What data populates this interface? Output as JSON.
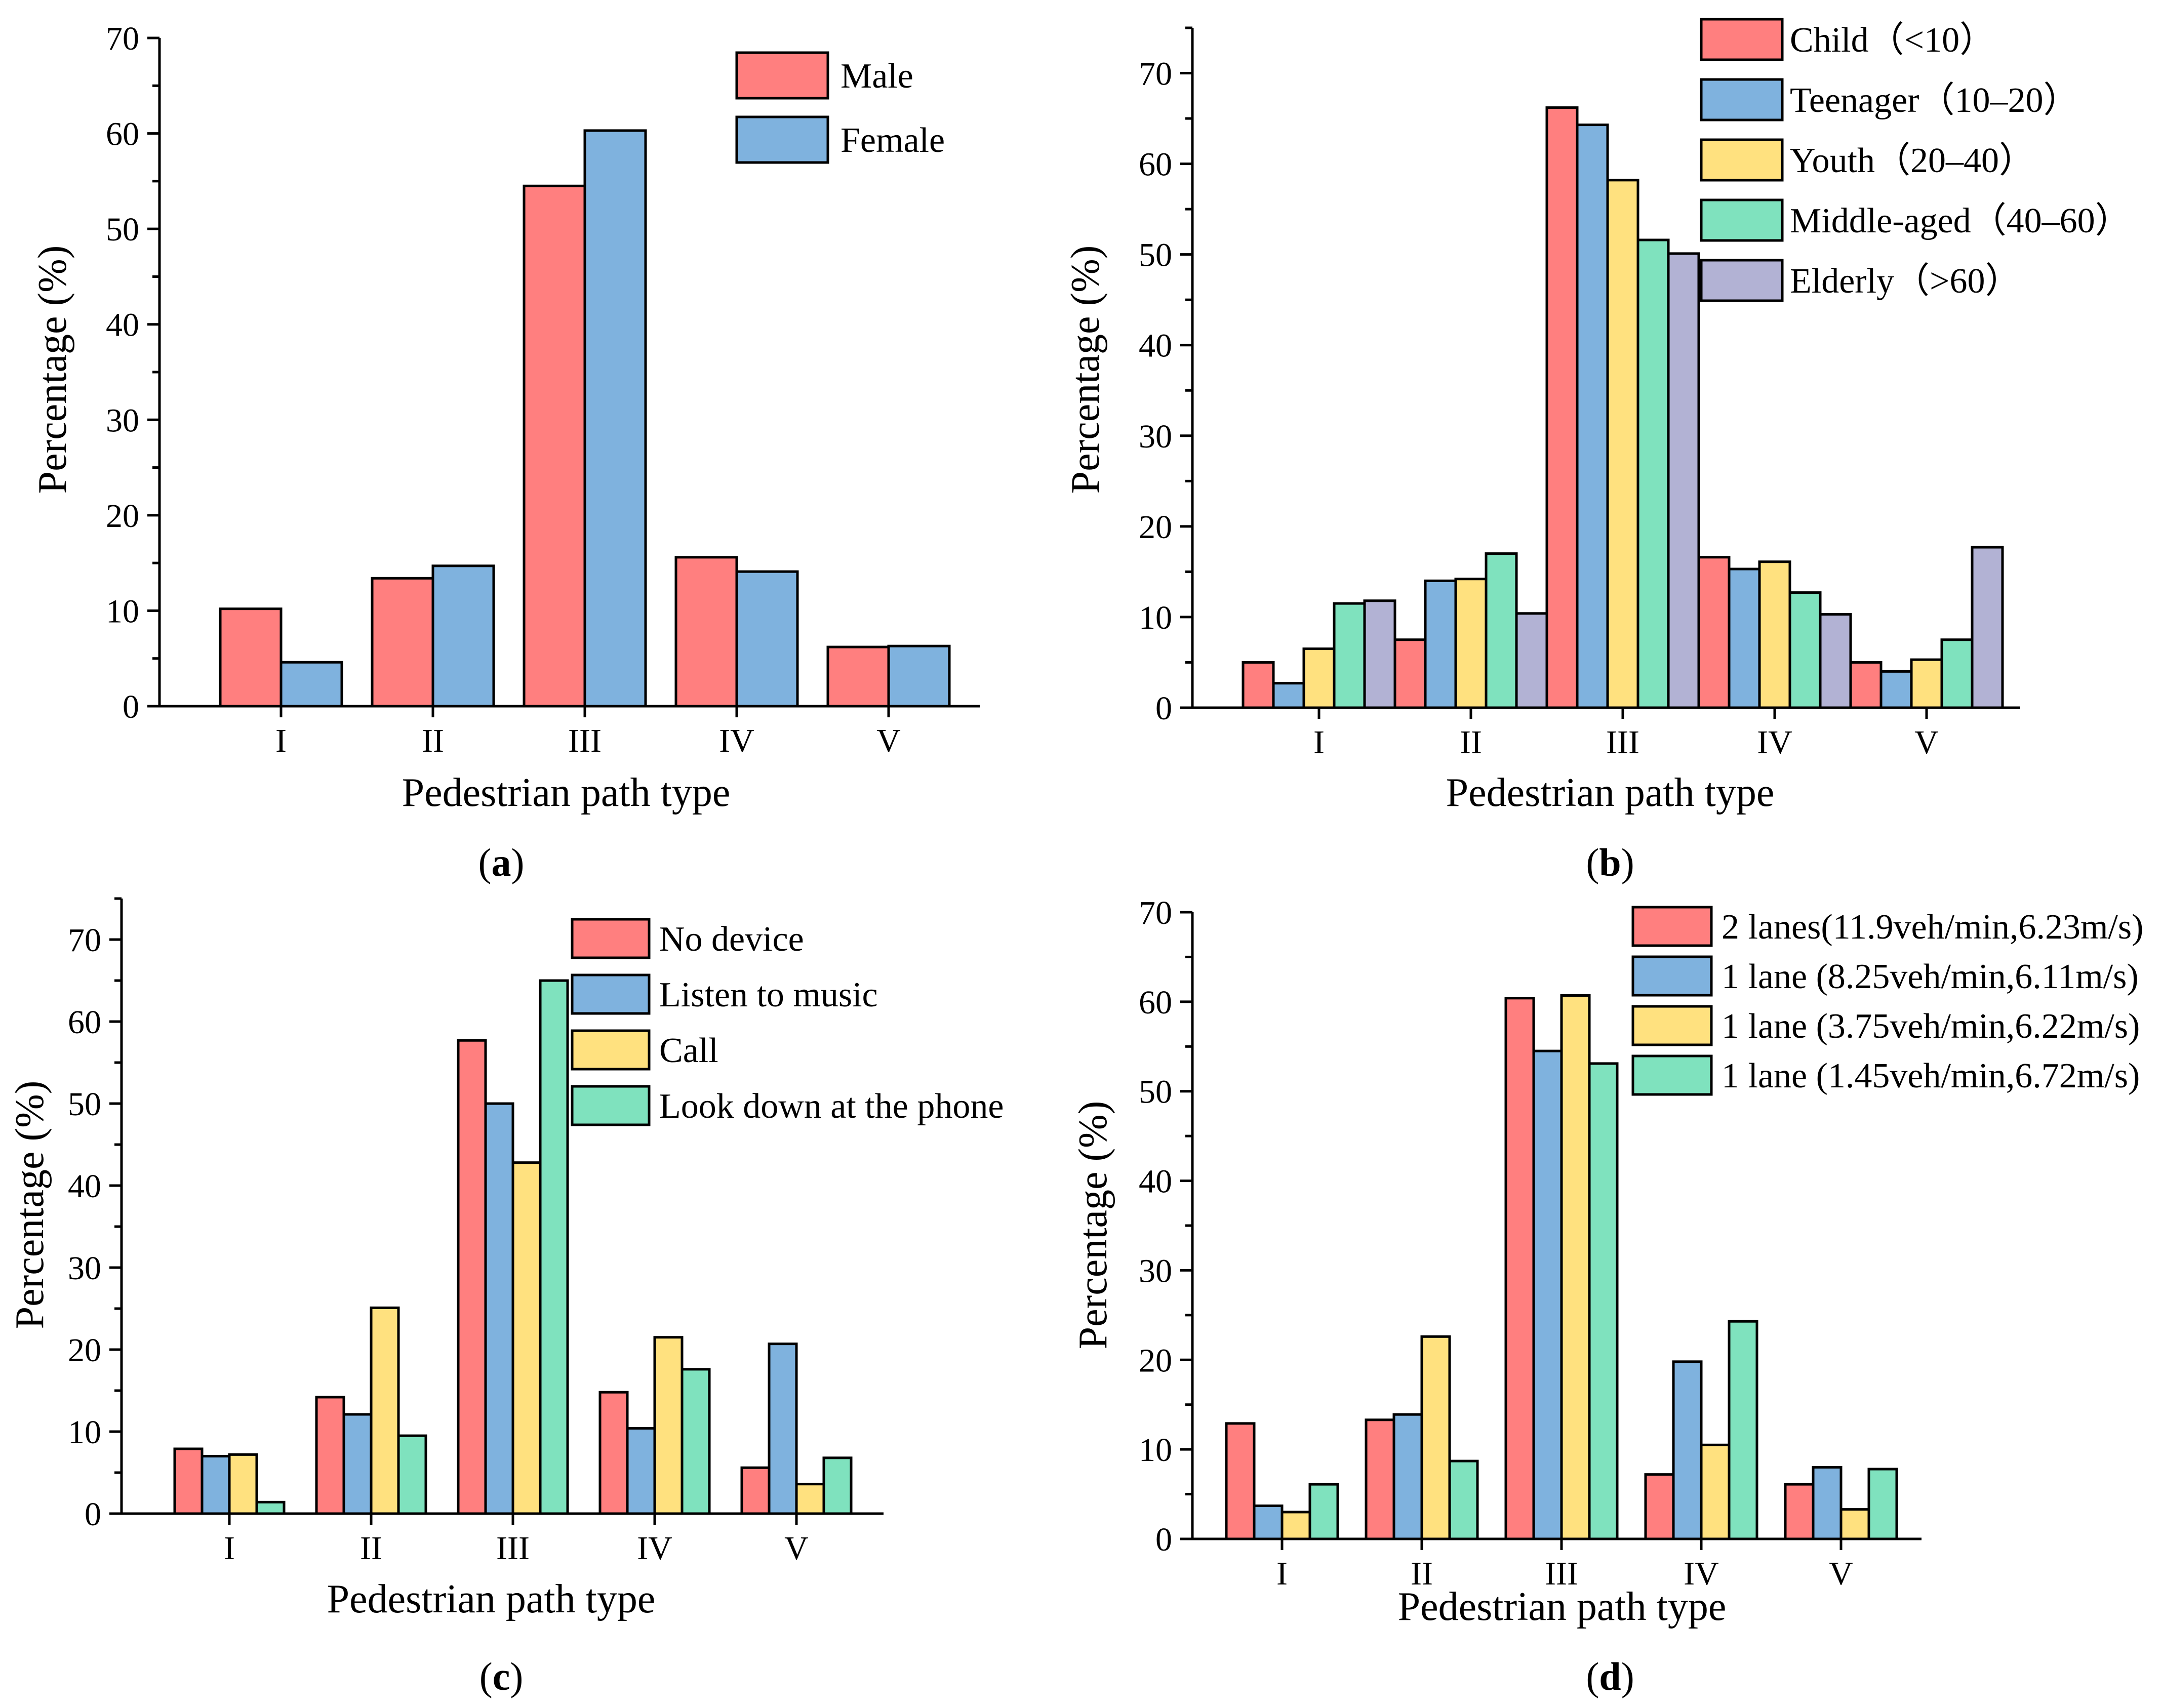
{
  "colors": {
    "red": "#FF7F7F",
    "blue": "#7FB2DE",
    "yellow": "#FFE17F",
    "green": "#7FE2BE",
    "purple": "#B2B2D4",
    "stroke": "#000000"
  },
  "chart_data": [
    {
      "panel": "a",
      "caption": "(a)",
      "caption_letter": "a",
      "type": "bar",
      "title": "",
      "xlabel": "Pedestrian path type",
      "ylabel": "Percentage (%)",
      "ylim": [
        0,
        70
      ],
      "yticks": [
        0,
        10,
        20,
        30,
        40,
        50,
        60,
        70
      ],
      "categories": [
        "I",
        "II",
        "III",
        "IV",
        "V"
      ],
      "legend_position": "top-right",
      "series": [
        {
          "name": "Male",
          "color": "#FF7F7F",
          "values": [
            10.2,
            13.4,
            54.5,
            15.6,
            6.2
          ]
        },
        {
          "name": "Female",
          "color": "#7FB2DE",
          "values": [
            4.6,
            14.7,
            60.3,
            14.1,
            6.3
          ]
        }
      ]
    },
    {
      "panel": "b",
      "caption": "(b)",
      "caption_letter": "b",
      "type": "bar",
      "title": "",
      "xlabel": "Pedestrian path type",
      "ylabel": "Percentage (%)",
      "ylim": [
        0,
        75
      ],
      "yticks": [
        0,
        10,
        20,
        30,
        40,
        50,
        60,
        70
      ],
      "categories": [
        "I",
        "II",
        "III",
        "IV",
        "V"
      ],
      "legend_position": "top-right",
      "series": [
        {
          "name": "Child（<10）",
          "color": "#FF7F7F",
          "values": [
            5.0,
            7.5,
            66.2,
            16.6,
            5.0
          ]
        },
        {
          "name": "Teenager（10–20）",
          "color": "#7FB2DE",
          "values": [
            2.7,
            14.0,
            64.3,
            15.3,
            4.0
          ]
        },
        {
          "name": "Youth（20–40）",
          "color": "#FFE17F",
          "values": [
            6.5,
            14.2,
            58.2,
            16.1,
            5.3
          ]
        },
        {
          "name": "Middle-aged（40–60）",
          "color": "#7FE2BE",
          "values": [
            11.5,
            17.0,
            51.6,
            12.7,
            7.5
          ]
        },
        {
          "name": "Elderly（>60）",
          "color": "#B2B2D4",
          "values": [
            11.8,
            10.4,
            50.1,
            10.3,
            17.7
          ]
        }
      ]
    },
    {
      "panel": "c",
      "caption": "(c)",
      "caption_letter": "c",
      "type": "bar",
      "title": "",
      "xlabel": "Pedestrian path type",
      "ylabel": "Percentage (%)",
      "ylim": [
        0,
        75
      ],
      "yticks": [
        0,
        10,
        20,
        30,
        40,
        50,
        60,
        70
      ],
      "categories": [
        "I",
        "II",
        "III",
        "IV",
        "V"
      ],
      "legend_position": "top-right",
      "series": [
        {
          "name": "No device",
          "color": "#FF7F7F",
          "values": [
            7.9,
            14.2,
            57.7,
            14.8,
            5.6
          ]
        },
        {
          "name": "Listen to music",
          "color": "#7FB2DE",
          "values": [
            7.0,
            12.1,
            50.0,
            10.4,
            20.7
          ]
        },
        {
          "name": "Call",
          "color": "#FFE17F",
          "values": [
            7.2,
            25.1,
            42.8,
            21.5,
            3.6
          ]
        },
        {
          "name": "Look down at the phone",
          "color": "#7FE2BE",
          "values": [
            1.4,
            9.5,
            65.0,
            17.6,
            6.8
          ]
        }
      ]
    },
    {
      "panel": "d",
      "caption": "(d)",
      "caption_letter": "d",
      "type": "bar",
      "title": "",
      "xlabel": "Pedestrian path type",
      "ylabel": "Percentage (%)",
      "ylim": [
        0,
        70
      ],
      "yticks": [
        0,
        10,
        20,
        30,
        40,
        50,
        60,
        70
      ],
      "categories": [
        "I",
        "II",
        "III",
        "IV",
        "V"
      ],
      "legend_position": "top-right",
      "series": [
        {
          "name": "2 lanes(11.9veh/min,6.23m/s)",
          "color": "#FF7F7F",
          "values": [
            12.9,
            13.3,
            60.4,
            7.2,
            6.1
          ]
        },
        {
          "name": "1 lane  (8.25veh/min,6.11m/s)",
          "color": "#7FB2DE",
          "values": [
            3.7,
            13.9,
            54.5,
            19.8,
            8.0
          ]
        },
        {
          "name": "1 lane  (3.75veh/min,6.22m/s)",
          "color": "#FFE17F",
          "values": [
            3.0,
            22.6,
            60.7,
            10.5,
            3.3
          ]
        },
        {
          "name": "1 lane  (1.45veh/min,6.72m/s)",
          "color": "#7FE2BE",
          "values": [
            6.1,
            8.7,
            53.1,
            24.3,
            7.8
          ]
        }
      ]
    }
  ]
}
